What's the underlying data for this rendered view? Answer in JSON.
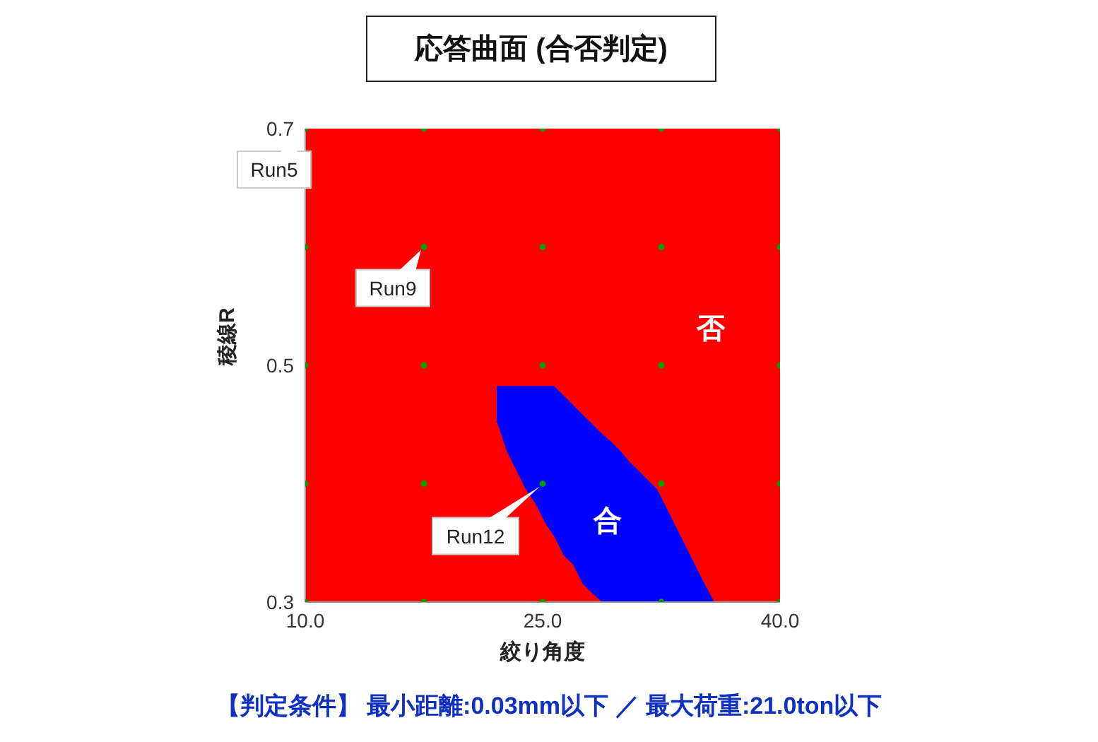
{
  "chart_data": {
    "type": "area",
    "title": "応答曲面 (合否判定)",
    "xlabel": "絞り角度",
    "ylabel": "稜線R",
    "xlim": [
      10,
      40
    ],
    "xticks": [
      {
        "value": 10,
        "label": "10.0"
      },
      {
        "value": 25,
        "label": "25.0"
      },
      {
        "value": 40,
        "label": "40.0"
      }
    ],
    "ylim": [
      0.3,
      0.7
    ],
    "yticks": [
      0.3,
      0.5,
      0.7
    ],
    "bands": [
      {
        "axis": "x",
        "from": 10,
        "to": 40,
        "color": "#ff0000"
      }
    ],
    "series": [
      {
        "type": "area",
        "color": "#0000ff",
        "x": [
          22.1,
          22.7,
          23.3,
          23.9,
          24.5,
          25.1,
          25.7,
          26.3,
          26.9,
          27.5,
          28.1,
          28.7,
          29.3,
          29.9,
          30.4,
          31.0,
          31.6,
          32.2,
          32.8,
          33.4,
          34.0,
          34.6,
          35.2,
          35.8
        ],
        "values": [
          0.482,
          0.482,
          0.482,
          0.482,
          0.482,
          0.482,
          0.482,
          0.474,
          0.466,
          0.458,
          0.45,
          0.442,
          0.435,
          0.427,
          0.419,
          0.411,
          0.403,
          0.395,
          0.379,
          0.363,
          0.347,
          0.331,
          0.315,
          0.3
        ]
      },
      {
        "color": "#ff0000",
        "x": [
          22.1,
          22.7,
          23.3,
          23.9,
          24.5,
          25.1,
          25.7,
          26.3,
          26.9,
          27.5,
          28.1,
          28.7
        ],
        "values": [
          0.451,
          0.427,
          0.411,
          0.395,
          0.383,
          0.367,
          0.355,
          0.339,
          0.331,
          0.315,
          0.307,
          0.3
        ]
      },
      {
        "type": "scatter",
        "color": "#00a000",
        "marker": "circle",
        "x": [
          10,
          17.5,
          25,
          32.5,
          40,
          10,
          17.5,
          25,
          32.5,
          40,
          10,
          17.5,
          25,
          32.5,
          40,
          10,
          17.5,
          25,
          32.5,
          40,
          10,
          17.5,
          25,
          32.5,
          40
        ],
        "values": [
          0.3,
          0.3,
          0.3,
          0.3,
          0.3,
          0.4,
          0.4,
          0.4,
          0.4,
          0.4,
          0.5,
          0.5,
          0.5,
          0.5,
          0.5,
          0.6,
          0.6,
          0.6,
          0.6,
          0.6,
          0.7,
          0.7,
          0.7,
          0.7,
          0.7
        ]
      }
    ],
    "annotations": [
      {
        "text": "Run5",
        "x": 10,
        "y": 0.7
      },
      {
        "text": "Run9",
        "x": 17.5,
        "y": 0.6
      },
      {
        "text": "Run12",
        "x": 25,
        "y": 0.4
      },
      "否",
      "合",
      "【判定条件】 最小距離:0.03mm以下 ／ 最大荷重:21.0ton以下"
    ]
  }
}
